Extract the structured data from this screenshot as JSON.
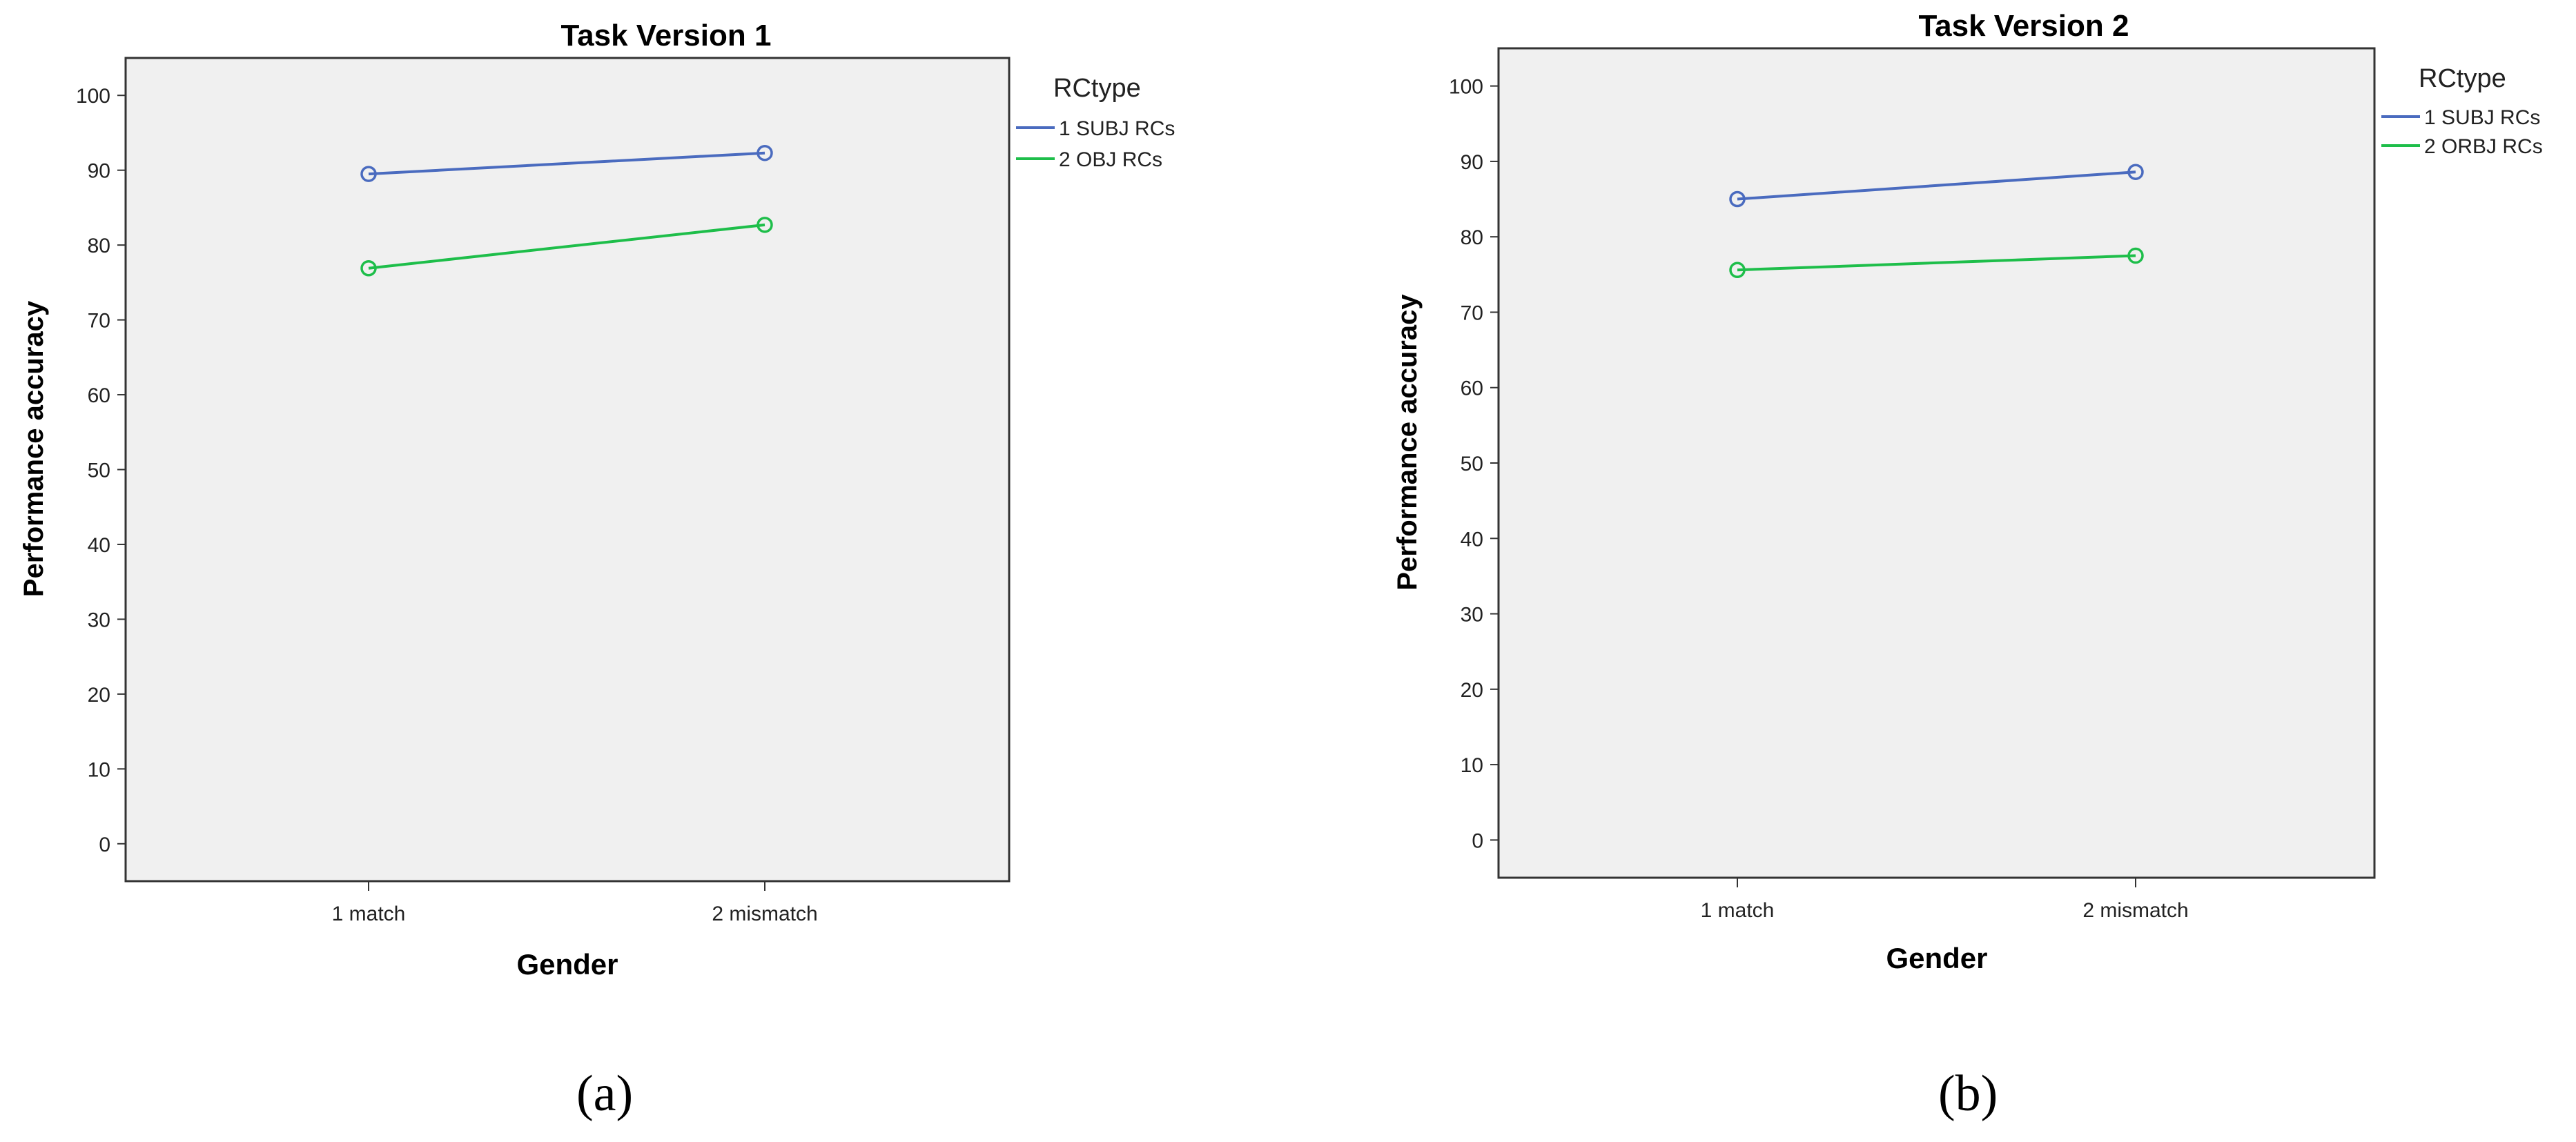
{
  "chart_data": [
    {
      "type": "line",
      "title": "Task  Version 1",
      "xlabel": "Gender",
      "ylabel": "Performance accuracy",
      "categories": [
        "1 match",
        "2 mismatch"
      ],
      "ylim": [
        -5,
        105
      ],
      "yticks": [
        0,
        10,
        20,
        30,
        40,
        50,
        60,
        70,
        80,
        90,
        100
      ],
      "legend": {
        "title": "RCtype",
        "placement": "right-outside"
      },
      "grid": false,
      "series": [
        {
          "name": "1 SUBJ RCs",
          "values": [
            89.5,
            92.3
          ],
          "color": "#4a6bbf"
        },
        {
          "name": "2 OBJ RCs",
          "values": [
            76.9,
            82.7
          ],
          "color": "#1ebe4a"
        }
      ],
      "caption": "(a)"
    },
    {
      "type": "line",
      "title": "Task Version 2",
      "xlabel": "Gender",
      "ylabel": "Performance accuracy",
      "categories": [
        "1 match",
        "2 mismatch"
      ],
      "ylim": [
        -5,
        105
      ],
      "yticks": [
        0,
        10,
        20,
        30,
        40,
        50,
        60,
        70,
        80,
        90,
        100
      ],
      "legend": {
        "title": "RCtype",
        "placement": "right-outside"
      },
      "grid": false,
      "series": [
        {
          "name": "1 SUBJ RCs",
          "values": [
            85.0,
            88.6
          ],
          "color": "#4a6bbf"
        },
        {
          "name": "2 ORBJ RCs",
          "values": [
            75.6,
            77.5
          ],
          "color": "#1ebe4a"
        }
      ],
      "caption": "(b)"
    }
  ],
  "style": {
    "plot_bg": "#f0f0f0",
    "axis_color": "#333333"
  }
}
